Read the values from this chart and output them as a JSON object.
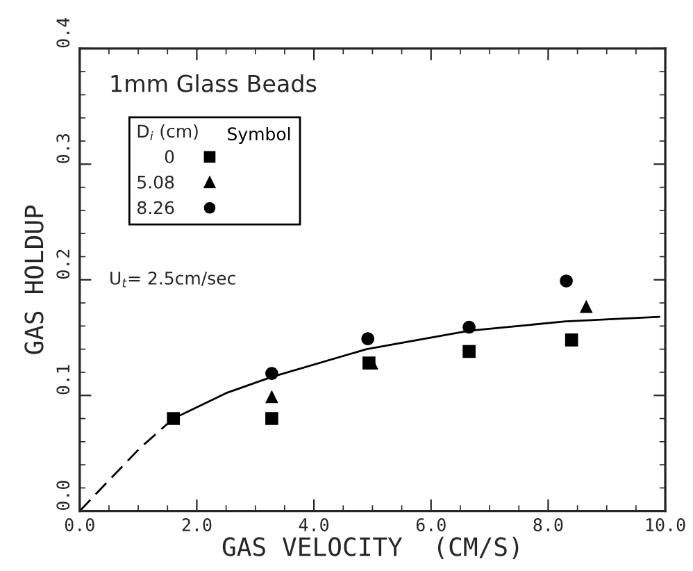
{
  "chart_data": {
    "type": "scatter",
    "xlabel": "GAS VELOCITY  (CM/S)",
    "ylabel": "GAS HOLDUP",
    "legend_title": "D$_{i}$ (cm)",
    "legend": "top left",
    "annotations": [
      "1mm Glass Beads",
      "Symbol",
      "U$_{t}$= 2.5cm/sec"
    ],
    "xlim": [
      0,
      10
    ],
    "xticks": [
      {
        "value": 0,
        "label": "0.0"
      },
      {
        "value": 2,
        "label": "2.0"
      },
      {
        "value": 4,
        "label": "4.0"
      },
      {
        "value": 6,
        "label": "6.0"
      },
      {
        "value": 8,
        "label": "8.0"
      },
      {
        "value": 10,
        "label": "10.0"
      }
    ],
    "ylim": [
      0,
      0.4
    ],
    "yticks": [
      {
        "value": 0,
        "label": "0.0"
      },
      0.1,
      0.2,
      0.3,
      0.4
    ],
    "series": [
      {
        "name": "0",
        "color": "#000000",
        "marker": "square",
        "x": [
          1.6,
          3.28,
          4.94,
          6.65,
          8.4
        ],
        "values": [
          0.08,
          0.08,
          0.128,
          0.138,
          0.148
        ]
      },
      {
        "name": "5.08",
        "color": "#000000",
        "marker": "triangle",
        "x": [
          3.28,
          4.99,
          8.65
        ],
        "values": [
          0.099,
          0.128,
          0.177
        ]
      },
      {
        "name": "8.26",
        "color": "#000000",
        "marker": "circle",
        "x": [
          3.28,
          4.92,
          6.65,
          8.31
        ],
        "values": [
          0.119,
          0.149,
          0.159,
          0.199
        ]
      },
      {
        "type": "line",
        "color": "#000000",
        "line_style": "dashed",
        "x": [
          0,
          0.47,
          1.02,
          1.6
        ],
        "values": [
          0,
          0.025,
          0.054,
          0.08
        ]
      },
      {
        "type": "line",
        "color": "#000000",
        "line_style": "solid",
        "x": [
          1.6,
          2.5,
          3.28,
          4.9,
          6.65,
          8.3,
          9.9
        ],
        "values": [
          0.08,
          0.102,
          0.116,
          0.14,
          0.156,
          0.164,
          0.168
        ]
      }
    ]
  }
}
